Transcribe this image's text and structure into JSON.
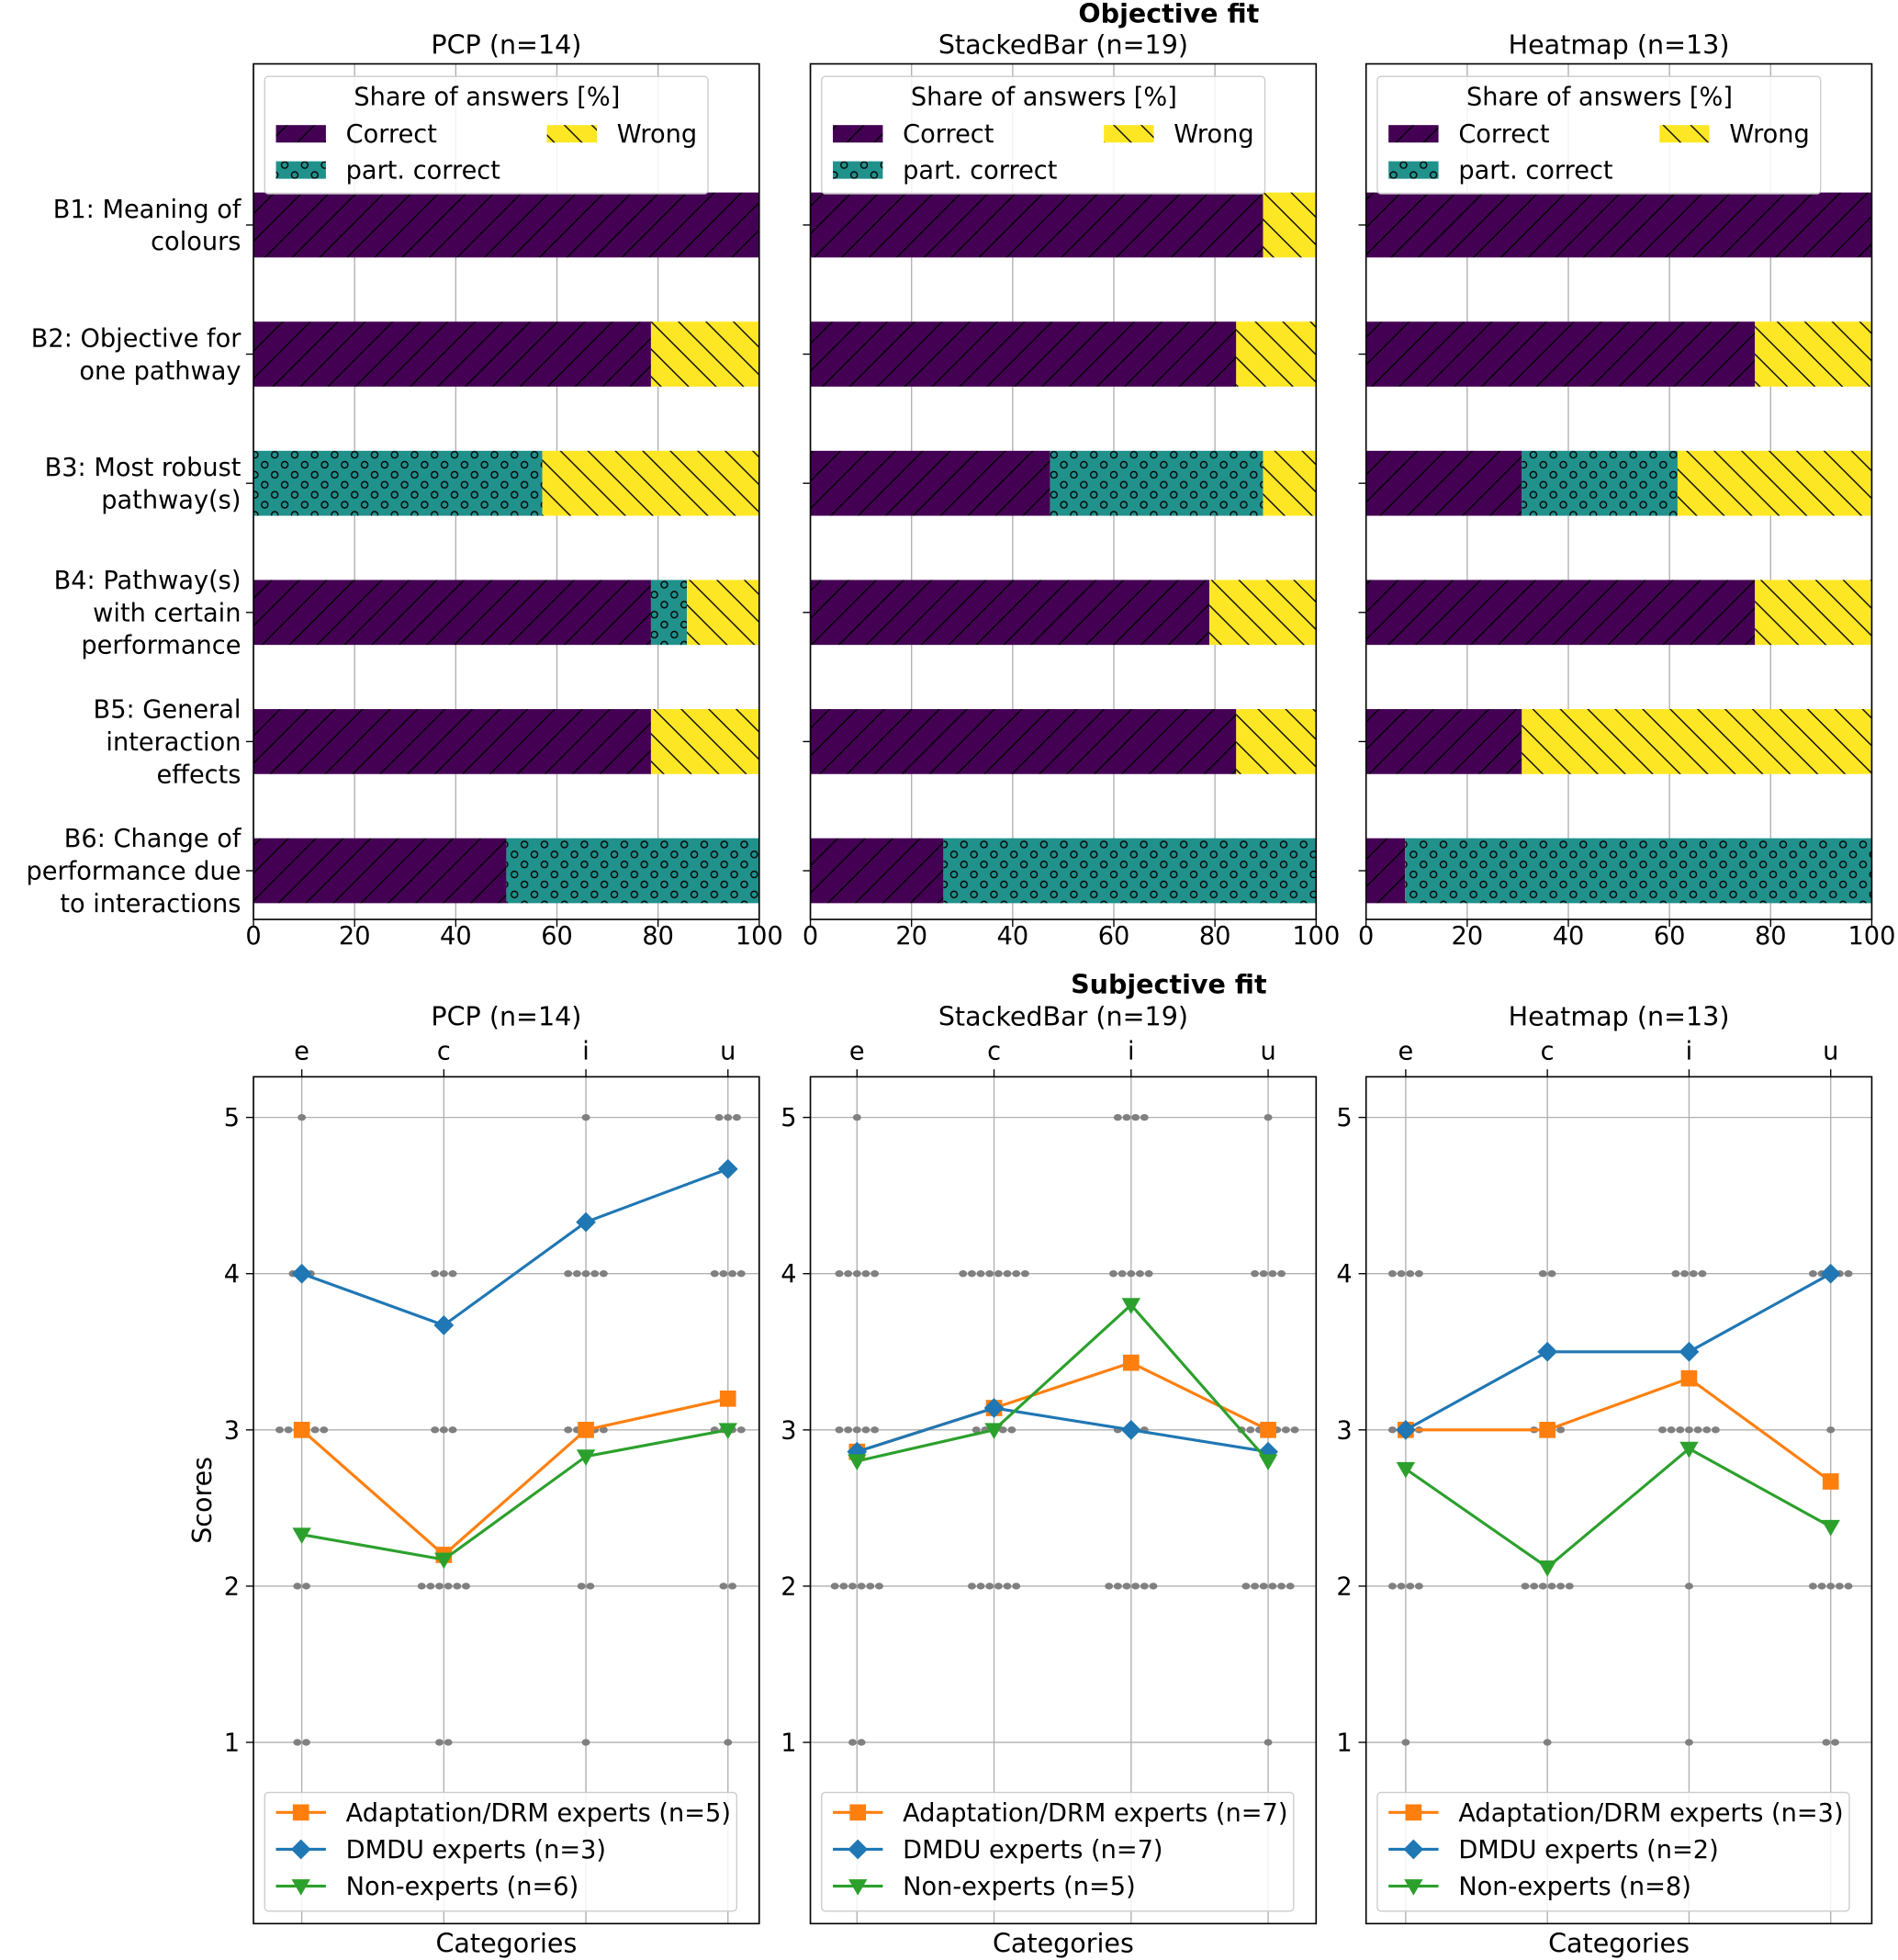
{
  "figure": {
    "top_title": "Objective fit",
    "bottom_title": "Subjective fit"
  },
  "chart_data": {
    "objective": {
      "type": "bar",
      "orientation": "horizontal-stacked",
      "legend_title": "Share of answers [%]",
      "legend": [
        "Correct",
        "part. correct",
        "Wrong"
      ],
      "colors": {
        "Correct": "#440154",
        "part. correct": "#21918c",
        "Wrong": "#fde725"
      },
      "hatches": {
        "Correct": "/",
        "part. correct": "o",
        "Wrong": "\\"
      },
      "legend_placement": "top-left",
      "xlim": [
        0,
        100
      ],
      "xticks": [
        "0",
        "20",
        "40",
        "60",
        "80",
        "100"
      ],
      "grid": true,
      "categories": [
        [
          "B1: Meaning of",
          "colours"
        ],
        [
          "B2: Objective for",
          "one pathway"
        ],
        [
          "B3: Most robust",
          "pathway(s)"
        ],
        [
          "B4: Pathway(s)",
          "with certain",
          "performance"
        ],
        [
          "B5: General",
          "interaction",
          "effects"
        ],
        [
          "B6: Change of",
          "performance due",
          "to interactions"
        ]
      ],
      "panels": [
        {
          "title": "PCP (n=14)",
          "series": [
            {
              "name": "Correct",
              "values": [
                100,
                78.6,
                0,
                78.6,
                78.6,
                50
              ]
            },
            {
              "name": "part. correct",
              "values": [
                0,
                0,
                57.1,
                7.1,
                0,
                50
              ]
            },
            {
              "name": "Wrong",
              "values": [
                0,
                21.4,
                42.9,
                14.3,
                21.4,
                0
              ]
            }
          ]
        },
        {
          "title": "StackedBar (n=19)",
          "series": [
            {
              "name": "Correct",
              "values": [
                89.5,
                84.2,
                47.4,
                78.9,
                84.2,
                26.3
              ]
            },
            {
              "name": "part. correct",
              "values": [
                0,
                0,
                42.1,
                0,
                0,
                73.7
              ]
            },
            {
              "name": "Wrong",
              "values": [
                10.5,
                15.8,
                10.5,
                21.1,
                15.8,
                0
              ]
            }
          ]
        },
        {
          "title": "Heatmap (n=13)",
          "series": [
            {
              "name": "Correct",
              "values": [
                100,
                76.9,
                30.8,
                76.9,
                30.8,
                7.7
              ]
            },
            {
              "name": "part. correct",
              "values": [
                0,
                0,
                30.8,
                0,
                0,
                92.3
              ]
            },
            {
              "name": "Wrong",
              "values": [
                0,
                23.1,
                38.5,
                23.1,
                69.2,
                0
              ]
            }
          ]
        }
      ]
    },
    "subjective": {
      "type": "line",
      "categories": [
        "e",
        "c",
        "i",
        "u"
      ],
      "xlabel": "Categories",
      "ylabel": "Scores",
      "ylim": [
        -0.16,
        5.26
      ],
      "yticks": [
        "1",
        "2",
        "3",
        "4",
        "5"
      ],
      "grid": true,
      "legend_placement": "bottom-left",
      "series_style": [
        {
          "color": "#ff7f0e",
          "marker": "square"
        },
        {
          "color": "#1f77b4",
          "marker": "diamond"
        },
        {
          "color": "#2ca02c",
          "marker": "triangle-down"
        }
      ],
      "panels": [
        {
          "title": "PCP (n=14)",
          "xlim": [
            -0.34,
            3.22
          ],
          "responses": [
            {
              "5": 1,
              "4": 3,
              "3": 6,
              "2": 2,
              "1": 2
            },
            {
              "5": 0,
              "4": 3,
              "3": 3,
              "2": 6,
              "1": 2
            },
            {
              "5": 1,
              "4": 5,
              "3": 5,
              "2": 2,
              "1": 1
            },
            {
              "5": 3,
              "4": 4,
              "3": 4,
              "2": 2,
              "1": 1
            }
          ],
          "series": [
            {
              "name": "Adaptation/DRM experts (n=5)",
              "values": [
                3.0,
                2.2,
                3.0,
                3.2
              ]
            },
            {
              "name": "DMDU experts (n=3)",
              "values": [
                4.0,
                3.67,
                4.33,
                4.67
              ]
            },
            {
              "name": "Non-experts  (n=6)",
              "values": [
                2.33,
                2.17,
                2.83,
                3.0
              ]
            }
          ]
        },
        {
          "title": "StackedBar (n=19)",
          "xlim": [
            -0.34,
            3.35
          ],
          "responses": [
            {
              "5": 1,
              "4": 5,
              "3": 5,
              "2": 6,
              "1": 2
            },
            {
              "5": 0,
              "4": 8,
              "3": 5,
              "2": 6,
              "1": 0
            },
            {
              "5": 4,
              "4": 5,
              "3": 4,
              "2": 6,
              "1": 0
            },
            {
              "5": 1,
              "4": 4,
              "3": 7,
              "2": 6,
              "1": 1
            }
          ],
          "series": [
            {
              "name": "Adaptation/DRM experts (n=7)",
              "values": [
                2.86,
                3.14,
                3.43,
                3.0
              ]
            },
            {
              "name": "DMDU experts (n=7)",
              "values": [
                2.86,
                3.14,
                3.0,
                2.86
              ]
            },
            {
              "name": "Non-experts  (n=5)",
              "values": [
                2.8,
                3.0,
                3.8,
                2.8
              ]
            }
          ]
        },
        {
          "title": "Heatmap (n=13)",
          "xlim": [
            -0.28,
            3.29
          ],
          "responses": [
            {
              "5": 0,
              "4": 4,
              "3": 4,
              "2": 4,
              "1": 1
            },
            {
              "5": 0,
              "4": 2,
              "3": 4,
              "2": 6,
              "1": 1
            },
            {
              "5": 0,
              "4": 4,
              "3": 7,
              "2": 1,
              "1": 1
            },
            {
              "5": 0,
              "4": 5,
              "3": 1,
              "2": 5,
              "1": 2
            }
          ],
          "series": [
            {
              "name": "Adaptation/DRM experts (n=3)",
              "values": [
                3.0,
                3.0,
                3.33,
                2.67
              ]
            },
            {
              "name": "DMDU experts (n=2)",
              "values": [
                3.0,
                3.5,
                3.5,
                4.0
              ]
            },
            {
              "name": "Non-experts  (n=8)",
              "values": [
                2.75,
                2.12,
                2.88,
                2.38
              ]
            }
          ]
        }
      ]
    }
  }
}
